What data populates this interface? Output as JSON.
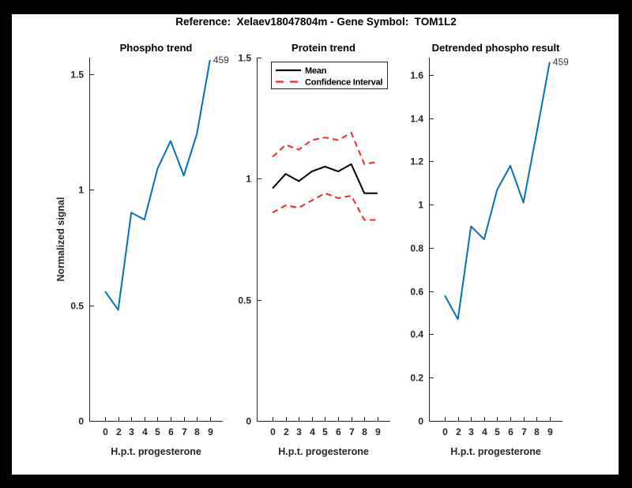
{
  "figure": {
    "title": "Reference:  Xelaev18047804m - Gene Symbol:  TOM1L2",
    "background_color": "#000000",
    "canvas_color": "#ffffff"
  },
  "colors": {
    "blue": "#0072BD",
    "red": "#f42525",
    "black": "#000000",
    "axis": "#262626"
  },
  "chart_data": [
    {
      "type": "line",
      "title": "Phospho trend",
      "xlabel": "H.p.t. progesterone",
      "ylabel": "Normalized signal",
      "categories": [
        0,
        2,
        3,
        4,
        5,
        6,
        7,
        8,
        9
      ],
      "series": [
        {
          "name": "459",
          "color": "#0072BD",
          "style": "solid",
          "values": [
            0.56,
            0.48,
            0.9,
            0.87,
            1.09,
            1.21,
            1.06,
            1.24,
            1.56
          ]
        }
      ],
      "end_label": "459",
      "ylim": [
        0,
        1.57
      ],
      "yticks": [
        0,
        0.5,
        1,
        1.5
      ],
      "grid": false,
      "legend": null
    },
    {
      "type": "line",
      "title": "Protein trend",
      "xlabel": "H.p.t. progesterone",
      "ylabel": "",
      "categories": [
        0,
        2,
        3,
        4,
        5,
        6,
        7,
        8,
        9
      ],
      "series": [
        {
          "name": "Mean",
          "color": "#000000",
          "style": "solid",
          "values": [
            0.96,
            1.02,
            0.99,
            1.03,
            1.05,
            1.03,
            1.06,
            0.94,
            0.94
          ]
        },
        {
          "name": "Confidence Interval (upper)",
          "color": "#f42525",
          "style": "dashed",
          "values": [
            1.09,
            1.14,
            1.12,
            1.16,
            1.17,
            1.16,
            1.19,
            1.06,
            1.07
          ]
        },
        {
          "name": "Confidence Interval (lower)",
          "color": "#f42525",
          "style": "dashed",
          "values": [
            0.86,
            0.89,
            0.88,
            0.91,
            0.94,
            0.92,
            0.93,
            0.83,
            0.83
          ]
        }
      ],
      "end_label": null,
      "ylim": [
        0,
        1.5
      ],
      "yticks": [
        0,
        0.5,
        1,
        1.5
      ],
      "grid": false,
      "legend": {
        "position": "northwest",
        "entries": [
          {
            "label": "Mean",
            "color": "#000000",
            "style": "solid"
          },
          {
            "label": "Confidence Interval",
            "color": "#f42525",
            "style": "dashed"
          }
        ]
      }
    },
    {
      "type": "line",
      "title": "Detrended phospho result",
      "xlabel": "H.p.t. progesterone",
      "ylabel": "",
      "categories": [
        0,
        2,
        3,
        4,
        5,
        6,
        7,
        8,
        9
      ],
      "series": [
        {
          "name": "459",
          "color": "#0072BD",
          "style": "solid",
          "values": [
            0.58,
            0.47,
            0.9,
            0.84,
            1.07,
            1.18,
            1.01,
            1.33,
            1.66
          ]
        }
      ],
      "end_label": "459",
      "ylim": [
        0,
        1.68
      ],
      "yticks": [
        0,
        0.2,
        0.4,
        0.6,
        0.8,
        1,
        1.2,
        1.4,
        1.6
      ],
      "grid": false,
      "legend": null
    }
  ]
}
